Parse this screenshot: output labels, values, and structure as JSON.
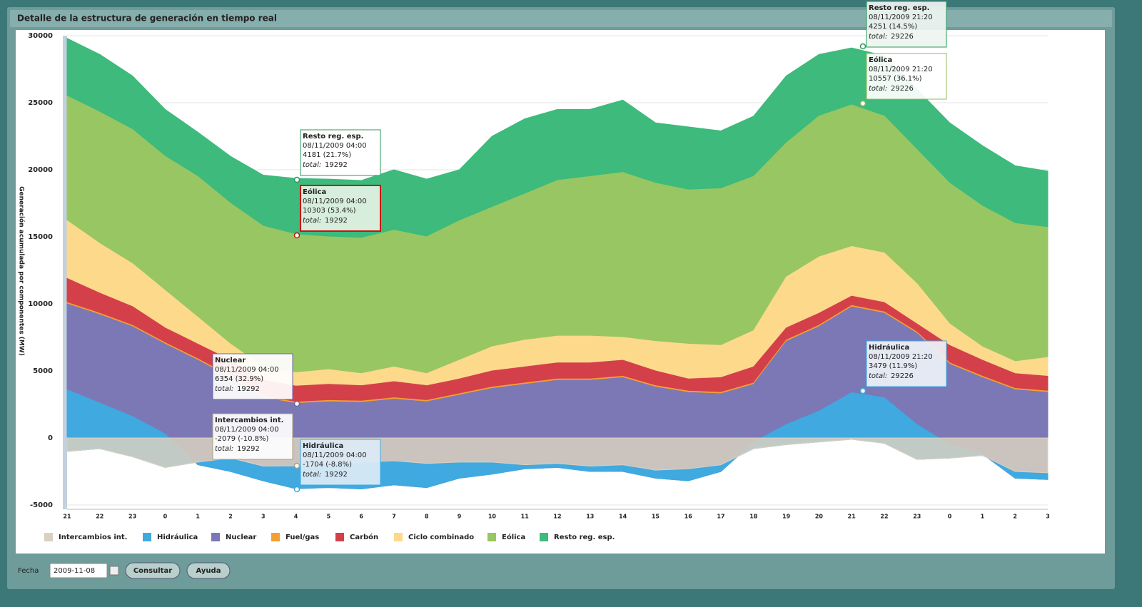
{
  "header": {
    "title": "Detalle de la estructura de generación en tiempo real"
  },
  "chart_data": {
    "type": "stacked_area",
    "y_label": "Generación acumulada por componentes (MW)",
    "categories": [
      "21",
      "22",
      "23",
      "0",
      "1",
      "2",
      "3",
      "4",
      "5",
      "6",
      "7",
      "8",
      "9",
      "10",
      "11",
      "12",
      "13",
      "14",
      "15",
      "16",
      "17",
      "18",
      "19",
      "20",
      "21",
      "22",
      "23",
      "0",
      "1",
      "2",
      "3"
    ],
    "ylim": [
      -5000,
      30000
    ],
    "yticks": [
      -5000,
      0,
      5000,
      10000,
      15000,
      20000,
      25000,
      30000
    ],
    "grid": true,
    "series": [
      {
        "name": "Intercambios int.",
        "color": "#d9d0c0",
        "values": [
          -1000,
          -800,
          -1400,
          -2200,
          -1800,
          -1500,
          -2100,
          -2079,
          -1900,
          -1800,
          -1700,
          -1900,
          -1800,
          -1800,
          -2000,
          -1900,
          -2100,
          -2000,
          -2400,
          -2300,
          -2000,
          -800,
          -500,
          -300,
          -100,
          -400,
          -1600,
          -1500,
          -1300,
          -2500,
          -2600
        ]
      },
      {
        "name": "Hidráulica",
        "color": "#3fa9e0",
        "values": [
          4600,
          3400,
          3000,
          2500,
          -200,
          -1000,
          -1100,
          -1704,
          -1800,
          -2000,
          -1800,
          -1800,
          -1200,
          -900,
          -300,
          -300,
          -400,
          -500,
          -600,
          -900,
          -500,
          500,
          1500,
          2300,
          3479,
          3400,
          2600,
          1000,
          100,
          -500,
          -500
        ]
      },
      {
        "name": "Nuclear",
        "color": "#7b78b5",
        "values": [
          6400,
          6600,
          6700,
          6700,
          7800,
          7000,
          6200,
          6354,
          6400,
          6450,
          6400,
          6400,
          6200,
          6400,
          6300,
          6500,
          6800,
          7000,
          6800,
          6600,
          5800,
          4300,
          6200,
          6300,
          6400,
          6300,
          6800,
          6000,
          5700,
          6600,
          6500
        ]
      },
      {
        "name": "Fuel/gas",
        "color": "#f4a030",
        "values": [
          100,
          100,
          100,
          100,
          100,
          100,
          100,
          100,
          100,
          100,
          100,
          100,
          100,
          100,
          100,
          100,
          100,
          100,
          100,
          100,
          100,
          100,
          100,
          100,
          100,
          100,
          100,
          100,
          100,
          100,
          100
        ]
      },
      {
        "name": "Carbón",
        "color": "#d4404a",
        "values": [
          1800,
          1500,
          1400,
          1100,
          1100,
          1200,
          1200,
          1200,
          1200,
          1150,
          1200,
          1100,
          1100,
          1200,
          1200,
          1200,
          1200,
          1200,
          1100,
          900,
          1100,
          1200,
          900,
          900,
          700,
          700,
          600,
          1300,
          1200,
          1100,
          1100
        ]
      },
      {
        "name": "Ciclo combinado",
        "color": "#fdd98c",
        "values": [
          4300,
          3700,
          3200,
          2800,
          2000,
          1200,
          1000,
          1000,
          1100,
          900,
          1100,
          900,
          1400,
          1800,
          2000,
          2000,
          2000,
          1700,
          2200,
          2600,
          2400,
          2700,
          3800,
          4200,
          3700,
          3700,
          3000,
          1600,
          1000,
          900,
          1400
        ]
      },
      {
        "name": "Eólica",
        "color": "#98c662",
        "values": [
          9300,
          9800,
          10000,
          10000,
          10500,
          10500,
          10500,
          10303,
          9900,
          10100,
          10200,
          10200,
          10400,
          10400,
          10900,
          11600,
          11900,
          12300,
          11800,
          11500,
          11700,
          11500,
          10000,
          10500,
          10557,
          10200,
          10000,
          10500,
          10500,
          10300,
          9700
        ]
      },
      {
        "name": "Resto reg. esp.",
        "color": "#3dba7c",
        "values": [
          4300,
          4300,
          4000,
          3500,
          3300,
          3500,
          3800,
          4181,
          4300,
          4300,
          4500,
          4300,
          3800,
          5300,
          5600,
          5300,
          5000,
          5400,
          4500,
          4700,
          4300,
          4500,
          5000,
          4600,
          4251,
          4500,
          4500,
          4500,
          4500,
          4300,
          4200
        ]
      }
    ],
    "tooltips": [
      {
        "title": "Resto reg. esp.",
        "date": "08/11/2009 04:00",
        "value": "4181 (21.7%)",
        "total_label": "total:",
        "total": 19292
      },
      {
        "title": "Eólica",
        "date": "08/11/2009 04:00",
        "value": "10303 (53.4%)",
        "total_label": "total:",
        "total": 19292
      },
      {
        "title": "Nuclear",
        "date": "08/11/2009 04:00",
        "value": "6354 (32.9%)",
        "total_label": "total:",
        "total": 19292
      },
      {
        "title": "Intercambios int.",
        "date": "08/11/2009 04:00",
        "value": "-2079 (-10.8%)",
        "total_label": "total:",
        "total": 19292
      },
      {
        "title": "Hidráulica",
        "date": "08/11/2009 04:00",
        "value": "-1704 (-8.8%)",
        "total_label": "total:",
        "total": 19292
      },
      {
        "title": "Resto reg. esp.",
        "date": "08/11/2009 21:20",
        "value": "4251 (14.5%)",
        "total_label": "total:",
        "total": 29226
      },
      {
        "title": "Eólica",
        "date": "08/11/2009 21:20",
        "value": "10557 (36.1%)",
        "total_label": "total:",
        "total": 29226
      },
      {
        "title": "Hidráulica",
        "date": "08/11/2009 21:20",
        "value": "3479 (11.9%)",
        "total_label": "total:",
        "total": 29226
      }
    ]
  },
  "form": {
    "label": "Fecha",
    "date": "2009-11-08",
    "buttons": [
      "Consultar",
      "Ayuda"
    ]
  }
}
